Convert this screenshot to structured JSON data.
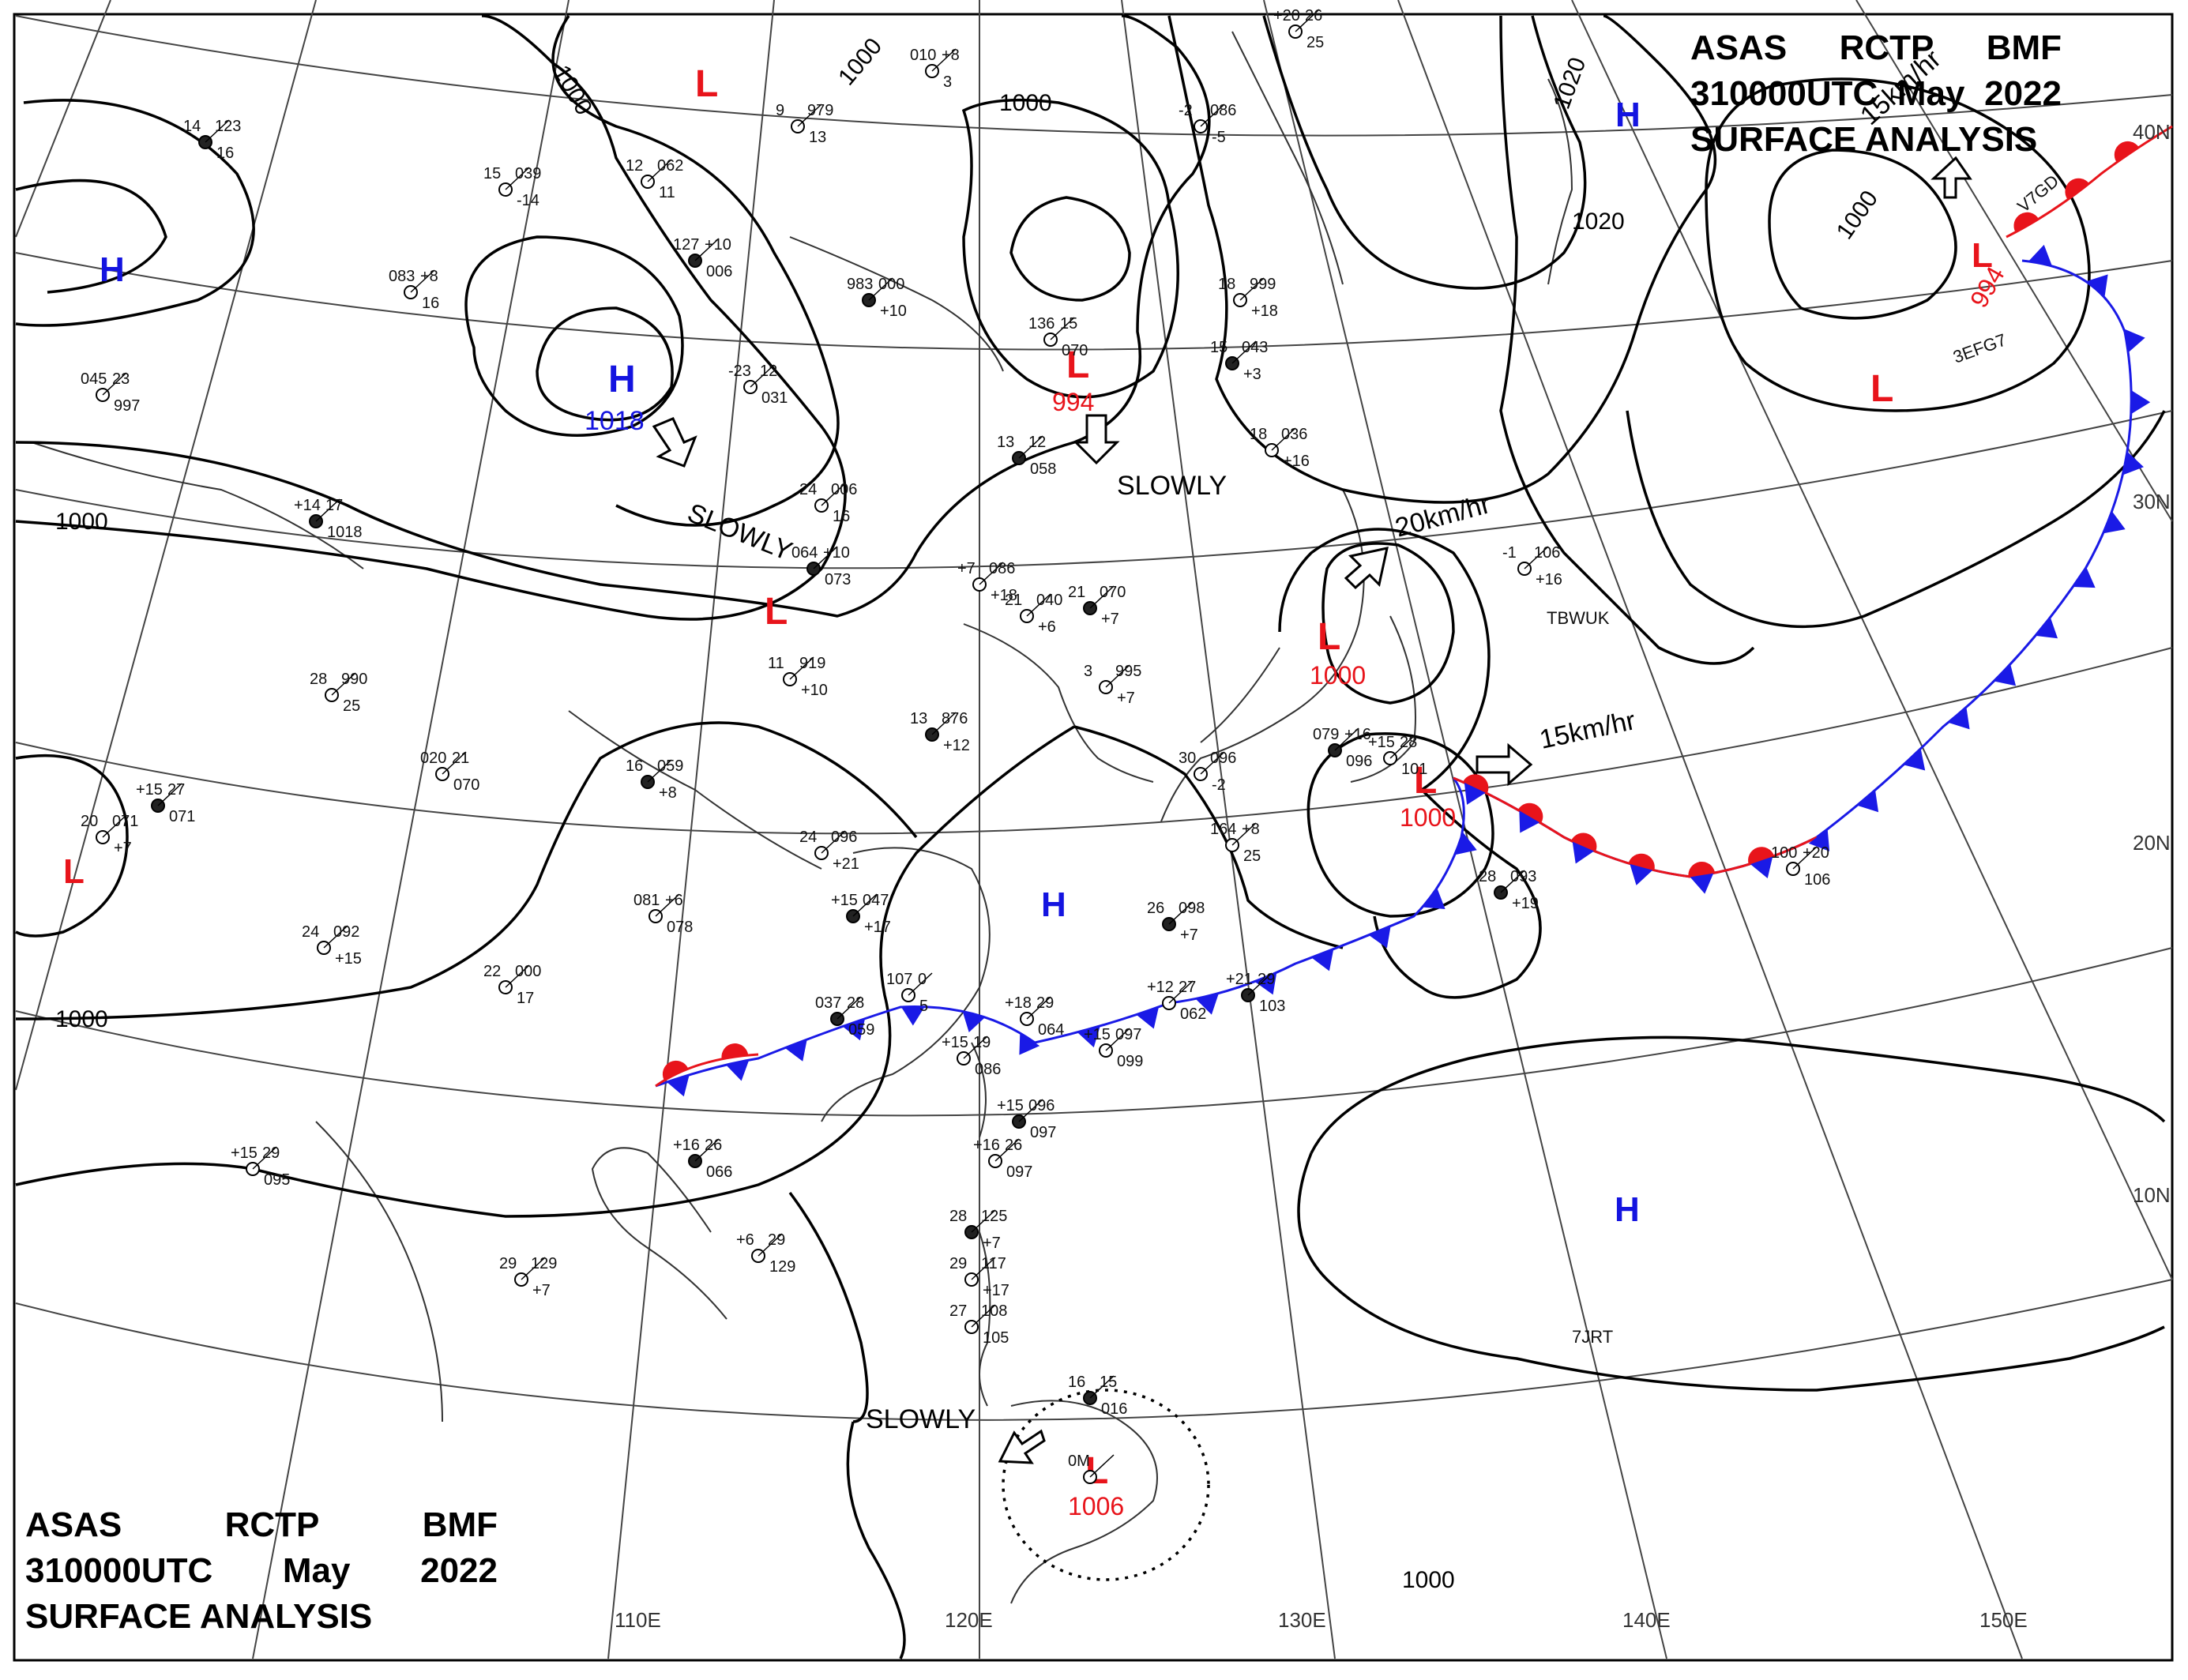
{
  "header": {
    "product": "ASAS",
    "station": "RCTP",
    "office": "BMF",
    "datetime": "310000UTC",
    "month": "May",
    "year": "2022",
    "title": "SURFACE ANALYSIS"
  },
  "grid": {
    "lon_labels": [
      "110E",
      "120E",
      "130E",
      "140E",
      "150E"
    ],
    "lat_labels": [
      "40N",
      "30N",
      "20N",
      "10N"
    ]
  },
  "isobars": {
    "labels": [
      "1000",
      "1000",
      "1000",
      "1000",
      "1000",
      "1000",
      "1000",
      "1020",
      "1020",
      "1000"
    ]
  },
  "pressure_centers": [
    {
      "type": "L",
      "value": ""
    },
    {
      "type": "H",
      "value": ""
    },
    {
      "type": "H",
      "value": "1018"
    },
    {
      "type": "L",
      "value": "994"
    },
    {
      "type": "L",
      "value": ""
    },
    {
      "type": "L",
      "value": ""
    },
    {
      "type": "H",
      "value": ""
    },
    {
      "type": "L",
      "value": "994"
    },
    {
      "type": "L",
      "value": ""
    },
    {
      "type": "L",
      "value": "1000"
    },
    {
      "type": "L",
      "value": "1000"
    },
    {
      "type": "H",
      "value": ""
    },
    {
      "type": "H",
      "value": ""
    },
    {
      "type": "L",
      "value": "1006"
    }
  ],
  "motions": [
    "SLOWLY",
    "SLOWLY",
    "20km/hr",
    "15km/hr",
    "15km/hr",
    "SLOWLY"
  ],
  "ship_callsigns": [
    "TBWUK",
    "3EFG7",
    "7JRT",
    "V7GD"
  ],
  "station_plots": [
    "14",
    "123",
    "16",
    "083",
    "+8",
    "16",
    "045",
    "23",
    "997",
    "+14",
    "17",
    "1018",
    "15",
    "039",
    "-14",
    "12",
    "062",
    "11",
    "127",
    "+10",
    "006",
    "-23",
    "12",
    "031",
    "9",
    "979",
    "13",
    "983",
    "000",
    "+10",
    "010",
    "+8",
    "3",
    "136",
    "15",
    "070",
    "13",
    "12",
    "058",
    "-2",
    "086",
    "-5",
    "18",
    "999",
    "+18",
    "15",
    "043",
    "+3",
    "18",
    "036",
    "+16",
    "24",
    "006",
    "16",
    "064",
    "+10",
    "073",
    "+7",
    "086",
    "+18",
    "21",
    "040",
    "+6",
    "21",
    "070",
    "+7",
    "3",
    "995",
    "+7",
    "11",
    "919",
    "+10",
    "13",
    "876",
    "+12",
    "28",
    "990",
    "25",
    "020",
    "21",
    "070",
    "+15",
    "27",
    "071",
    "20",
    "071",
    "+7",
    "24",
    "092",
    "+15",
    "16",
    "059",
    "+8",
    "24",
    "096",
    "+21",
    "081",
    "+6",
    "078",
    "+15",
    "047",
    "+17",
    "22",
    "000",
    "17",
    "107",
    "0",
    "5",
    "26",
    "098",
    "+7",
    "30",
    "096",
    "-2",
    "164",
    "+8",
    "25",
    "079",
    "+16",
    "096",
    "+15",
    "28",
    "101",
    "-1",
    "106",
    "+16",
    "28",
    "093",
    "+19",
    "100",
    "+20",
    "106",
    "+20",
    "26",
    "25",
    "037",
    "28",
    "059",
    "+18",
    "29",
    "064",
    "+12",
    "27",
    "062",
    "+21",
    "29",
    "103",
    "+15",
    "19",
    "086",
    "+15",
    "097",
    "099",
    "+15",
    "096",
    "097",
    "+16",
    "26",
    "097",
    "+15",
    "29",
    "095",
    "+16",
    "26",
    "066",
    "+6",
    "29",
    "129",
    "29",
    "129",
    "+7",
    "28",
    "125",
    "+7",
    "29",
    "117",
    "+17",
    "27",
    "108",
    "105",
    "16",
    "15",
    "016",
    "0M"
  ],
  "legend_colors": {
    "warm_front": "#e8141b",
    "cold_front": "#1a1ae6",
    "high_label": "#1414e0",
    "low_label": "#e8141b",
    "isobar": "#000000",
    "grid": "#000000"
  }
}
